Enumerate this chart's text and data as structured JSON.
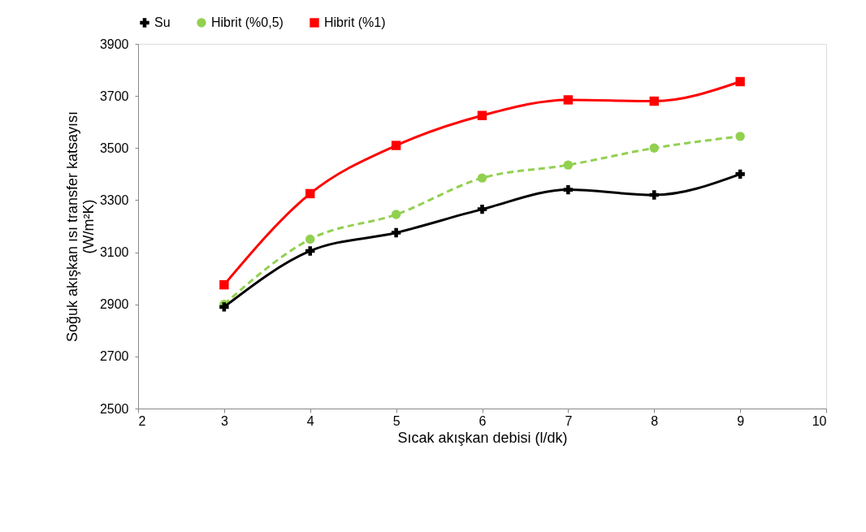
{
  "chart_data": {
    "type": "line",
    "x": [
      3,
      4,
      5,
      6,
      7,
      8,
      9
    ],
    "series": [
      {
        "name": "Su",
        "color": "#000000",
        "marker": "cross",
        "line_style": "solid",
        "values": [
          2890,
          3105,
          3175,
          3265,
          3340,
          3320,
          3400
        ]
      },
      {
        "name": "Hibrit (%0,5)",
        "color": "#92d050",
        "marker": "circle",
        "line_style": "dashed",
        "values": [
          2900,
          3150,
          3245,
          3385,
          3435,
          3500,
          3545
        ]
      },
      {
        "name": "Hibrit (%1)",
        "color": "#ff0000",
        "marker": "square",
        "line_style": "solid",
        "values": [
          2975,
          3325,
          3510,
          3625,
          3685,
          3680,
          3755
        ]
      }
    ],
    "xlabel": "Sıcak akışkan debisi (l/dk)",
    "ylabel": "Soğuk akışkan ısı transfer katsayısı\n(W/m²K)",
    "xlim": [
      2,
      10
    ],
    "xticks": [
      2,
      3,
      4,
      5,
      6,
      7,
      8,
      9,
      10
    ],
    "ylim": [
      2500,
      3900
    ],
    "yticks": [
      2500,
      2700,
      2900,
      3100,
      3300,
      3500,
      3700,
      3900
    ],
    "legend": "top",
    "grid": false
  }
}
